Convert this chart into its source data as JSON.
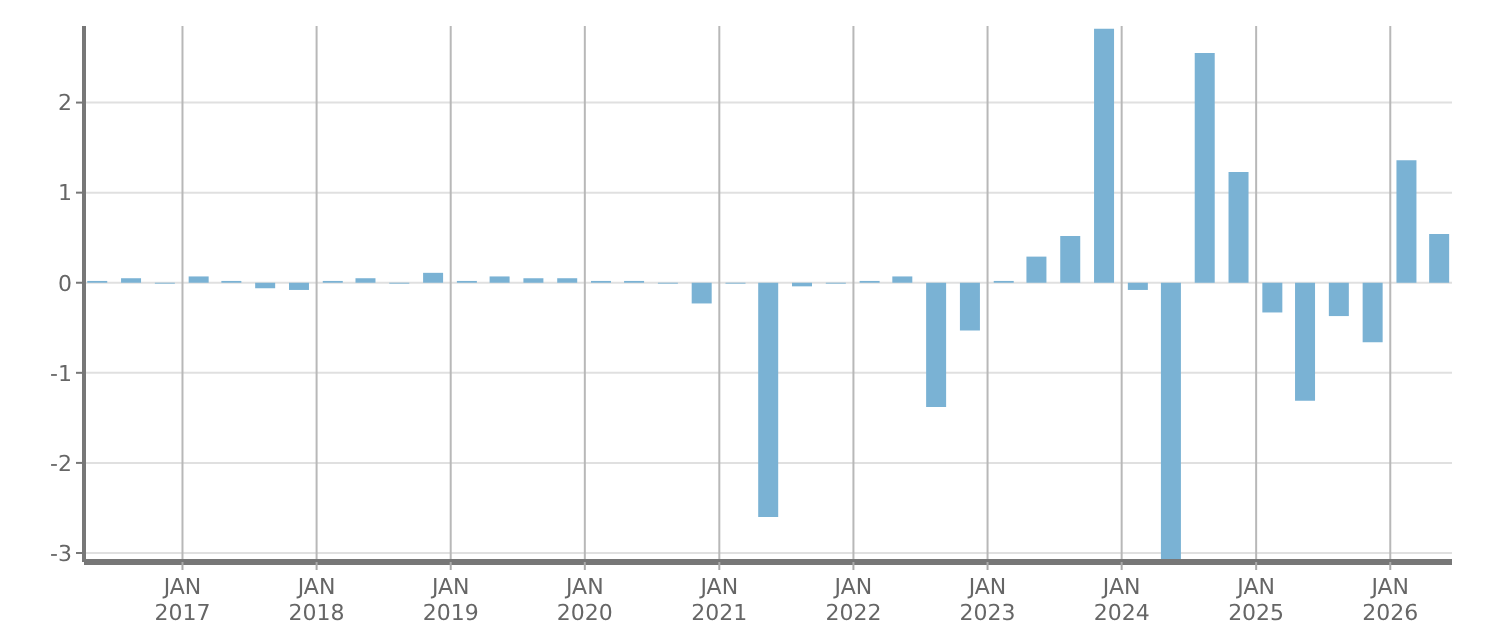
{
  "chart_data": {
    "type": "bar",
    "color": "#7ab2d4",
    "x": [
      "2016-05-15",
      "2016-08-15",
      "2016-11-15",
      "2017-02-15",
      "2017-05-15",
      "2017-08-15",
      "2017-11-15",
      "2018-02-15",
      "2018-05-15",
      "2018-08-15",
      "2018-11-15",
      "2019-02-15",
      "2019-05-15",
      "2019-08-15",
      "2019-11-15",
      "2020-02-15",
      "2020-05-15",
      "2020-08-15",
      "2020-11-15",
      "2021-02-15",
      "2021-05-15",
      "2021-08-15",
      "2021-11-15",
      "2022-02-15",
      "2022-05-15",
      "2022-08-15",
      "2022-11-15",
      "2023-02-15",
      "2023-05-15",
      "2023-08-15",
      "2023-11-15",
      "2024-02-15",
      "2024-05-15",
      "2024-08-15",
      "2024-11-15",
      "2025-02-15",
      "2025-05-15",
      "2025-08-15",
      "2025-11-15",
      "2026-02-15",
      "2026-05-15"
    ],
    "values": [
      0.02,
      0.05,
      -0.01,
      0.07,
      0.02,
      -0.06,
      -0.08,
      0.02,
      0.05,
      -0.01,
      0.11,
      0.02,
      0.07,
      0.05,
      0.05,
      0.02,
      0.02,
      -0.01,
      -0.23,
      -0.01,
      -2.6,
      -0.04,
      -0.01,
      0.02,
      0.07,
      -1.38,
      -0.53,
      0.02,
      0.29,
      0.52,
      2.82,
      -0.08,
      -3.1,
      2.55,
      1.23,
      -0.33,
      -1.31,
      -0.37,
      -0.66,
      1.36,
      0.54
    ],
    "xlim": [
      "2016-04-08",
      "2026-06-18"
    ],
    "xticks": [
      {
        "value": "2017-01-01",
        "label": "JAN 2017"
      },
      {
        "value": "2018-01-01",
        "label": "JAN 2018"
      },
      {
        "value": "2019-01-01",
        "label": "JAN 2019"
      },
      {
        "value": "2020-01-01",
        "label": "JAN 2020"
      },
      {
        "value": "2021-01-01",
        "label": "JAN 2021"
      },
      {
        "value": "2022-01-01",
        "label": "JAN 2022"
      },
      {
        "value": "2023-01-01",
        "label": "JAN 2023"
      },
      {
        "value": "2024-01-01",
        "label": "JAN 2024"
      },
      {
        "value": "2025-01-01",
        "label": "JAN 2025"
      },
      {
        "value": "2026-01-01",
        "label": "JAN 2026"
      }
    ],
    "ylim": [
      -3.1,
      2.85
    ],
    "yticks": [
      -3,
      -2,
      -1,
      0,
      1,
      2
    ],
    "grid": true
  }
}
